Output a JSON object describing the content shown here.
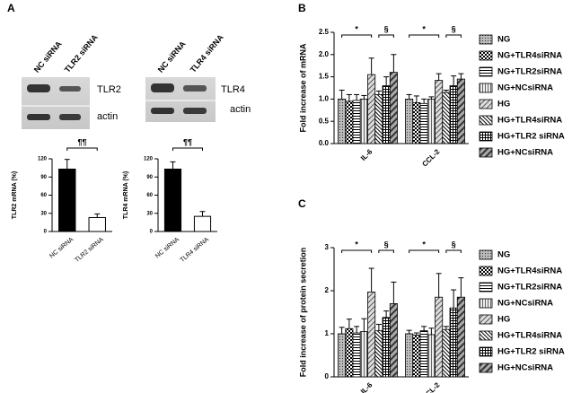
{
  "panel_labels": [
    "A",
    "B",
    "C"
  ],
  "blots": [
    {
      "lanes": [
        "NC siRNA",
        "TLR2 siRNA"
      ],
      "bands": [
        "TLR2",
        "actin"
      ]
    },
    {
      "lanes": [
        "NC siRNA",
        "TLR4 siRNA"
      ],
      "bands": [
        "TLR4",
        "actin"
      ]
    }
  ],
  "chart_data": [
    {
      "type": "bar",
      "y_label": "TLR2 mRNA (%)",
      "categories": [
        "NC siRNA",
        "TLR2 siRNA"
      ],
      "values": [
        103,
        23
      ],
      "errors": [
        16,
        6
      ],
      "colors": [
        "#000000",
        "#ffffff"
      ],
      "ylim": [
        0,
        120
      ],
      "yticks": [
        0,
        30,
        60,
        90,
        120
      ],
      "annotations": [
        "¶¶"
      ]
    },
    {
      "type": "bar",
      "y_label": "TLR4 mRNA (%)",
      "categories": [
        "NC siRNA",
        "TLR4 siRNA"
      ],
      "values": [
        103,
        25
      ],
      "errors": [
        12,
        8
      ],
      "colors": [
        "#000000",
        "#ffffff"
      ],
      "ylim": [
        0,
        120
      ],
      "yticks": [
        0,
        30,
        60,
        90,
        120
      ],
      "annotations": [
        "¶¶"
      ]
    },
    {
      "type": "grouped_bar",
      "y_label": "Fold increase of mRNA",
      "categories": [
        "IL-6",
        "CCL-2"
      ],
      "ylim": [
        0,
        2.5
      ],
      "yticks": [
        {
          "value": 0,
          "label": "0.0"
        },
        0.5,
        {
          "value": 1,
          "label": "1.0"
        },
        1.5,
        {
          "value": 2,
          "label": "2.0"
        },
        2.5
      ],
      "annotations": [
        "*",
        "§",
        "*",
        "§"
      ],
      "series": [
        {
          "name": "NG",
          "hatch": "dots",
          "values": [
            1.0,
            1.0
          ],
          "errors": [
            0.2,
            0.1
          ]
        },
        {
          "name": "NG+TLR4siRNA",
          "hatch": "checker",
          "values": [
            0.95,
            0.92
          ],
          "errors": [
            0.15,
            0.15
          ]
        },
        {
          "name": "NG+TLR2siRNA",
          "hatch": "hlines",
          "values": [
            0.97,
            0.9
          ],
          "errors": [
            0.13,
            0.1
          ]
        },
        {
          "name": "NG+NCsiRNA",
          "hatch": "vlines",
          "values": [
            1.0,
            1.0
          ],
          "errors": [
            0.08,
            0.05
          ]
        },
        {
          "name": "HG",
          "hatch": "diag",
          "values": [
            1.55,
            1.42
          ],
          "errors": [
            0.37,
            0.15
          ]
        },
        {
          "name": "HG+TLR4siRNA",
          "hatch": "diagdense",
          "values": [
            1.1,
            1.15
          ],
          "errors": [
            0.08,
            0.05
          ]
        },
        {
          "name": "HG+TLR2 siRNA",
          "hatch": "grid",
          "values": [
            1.3,
            1.3
          ],
          "errors": [
            0.2,
            0.22
          ]
        },
        {
          "name": "HG+NCsiRNA",
          "hatch": "diagwide",
          "values": [
            1.6,
            1.45
          ],
          "errors": [
            0.4,
            0.12
          ]
        }
      ]
    },
    {
      "type": "grouped_bar",
      "y_label": "Fold increase of protein secretion",
      "categories": [
        "IL-6",
        "CCL-2"
      ],
      "ylim": [
        0,
        3
      ],
      "yticks": [
        0,
        1,
        2,
        3
      ],
      "annotations": [
        "*",
        "§",
        "*",
        "§"
      ],
      "series": [
        {
          "name": "NG",
          "hatch": "dots",
          "values": [
            1.0,
            1.0
          ],
          "errors": [
            0.15,
            0.08
          ]
        },
        {
          "name": "NG+TLR4siRNA",
          "hatch": "checker",
          "values": [
            1.12,
            0.97
          ],
          "errors": [
            0.22,
            0.05
          ]
        },
        {
          "name": "NG+TLR2siRNA",
          "hatch": "hlines",
          "values": [
            1.02,
            1.07
          ],
          "errors": [
            0.15,
            0.1
          ]
        },
        {
          "name": "NG+NCsiRNA",
          "hatch": "vlines",
          "values": [
            1.05,
            0.98
          ],
          "errors": [
            0.3,
            0.15
          ]
        },
        {
          "name": "HG",
          "hatch": "diag",
          "values": [
            1.97,
            1.85
          ],
          "errors": [
            0.55,
            0.55
          ]
        },
        {
          "name": "HG+TLR4siRNA",
          "hatch": "diagdense",
          "values": [
            1.07,
            1.1
          ],
          "errors": [
            0.15,
            0.07
          ]
        },
        {
          "name": "HG+TLR2 siRNA",
          "hatch": "grid",
          "values": [
            1.38,
            1.6
          ],
          "errors": [
            0.15,
            0.42
          ]
        },
        {
          "name": "HG+NCsiRNA",
          "hatch": "diagwide",
          "values": [
            1.7,
            1.85
          ],
          "errors": [
            0.5,
            0.45
          ]
        }
      ]
    }
  ]
}
